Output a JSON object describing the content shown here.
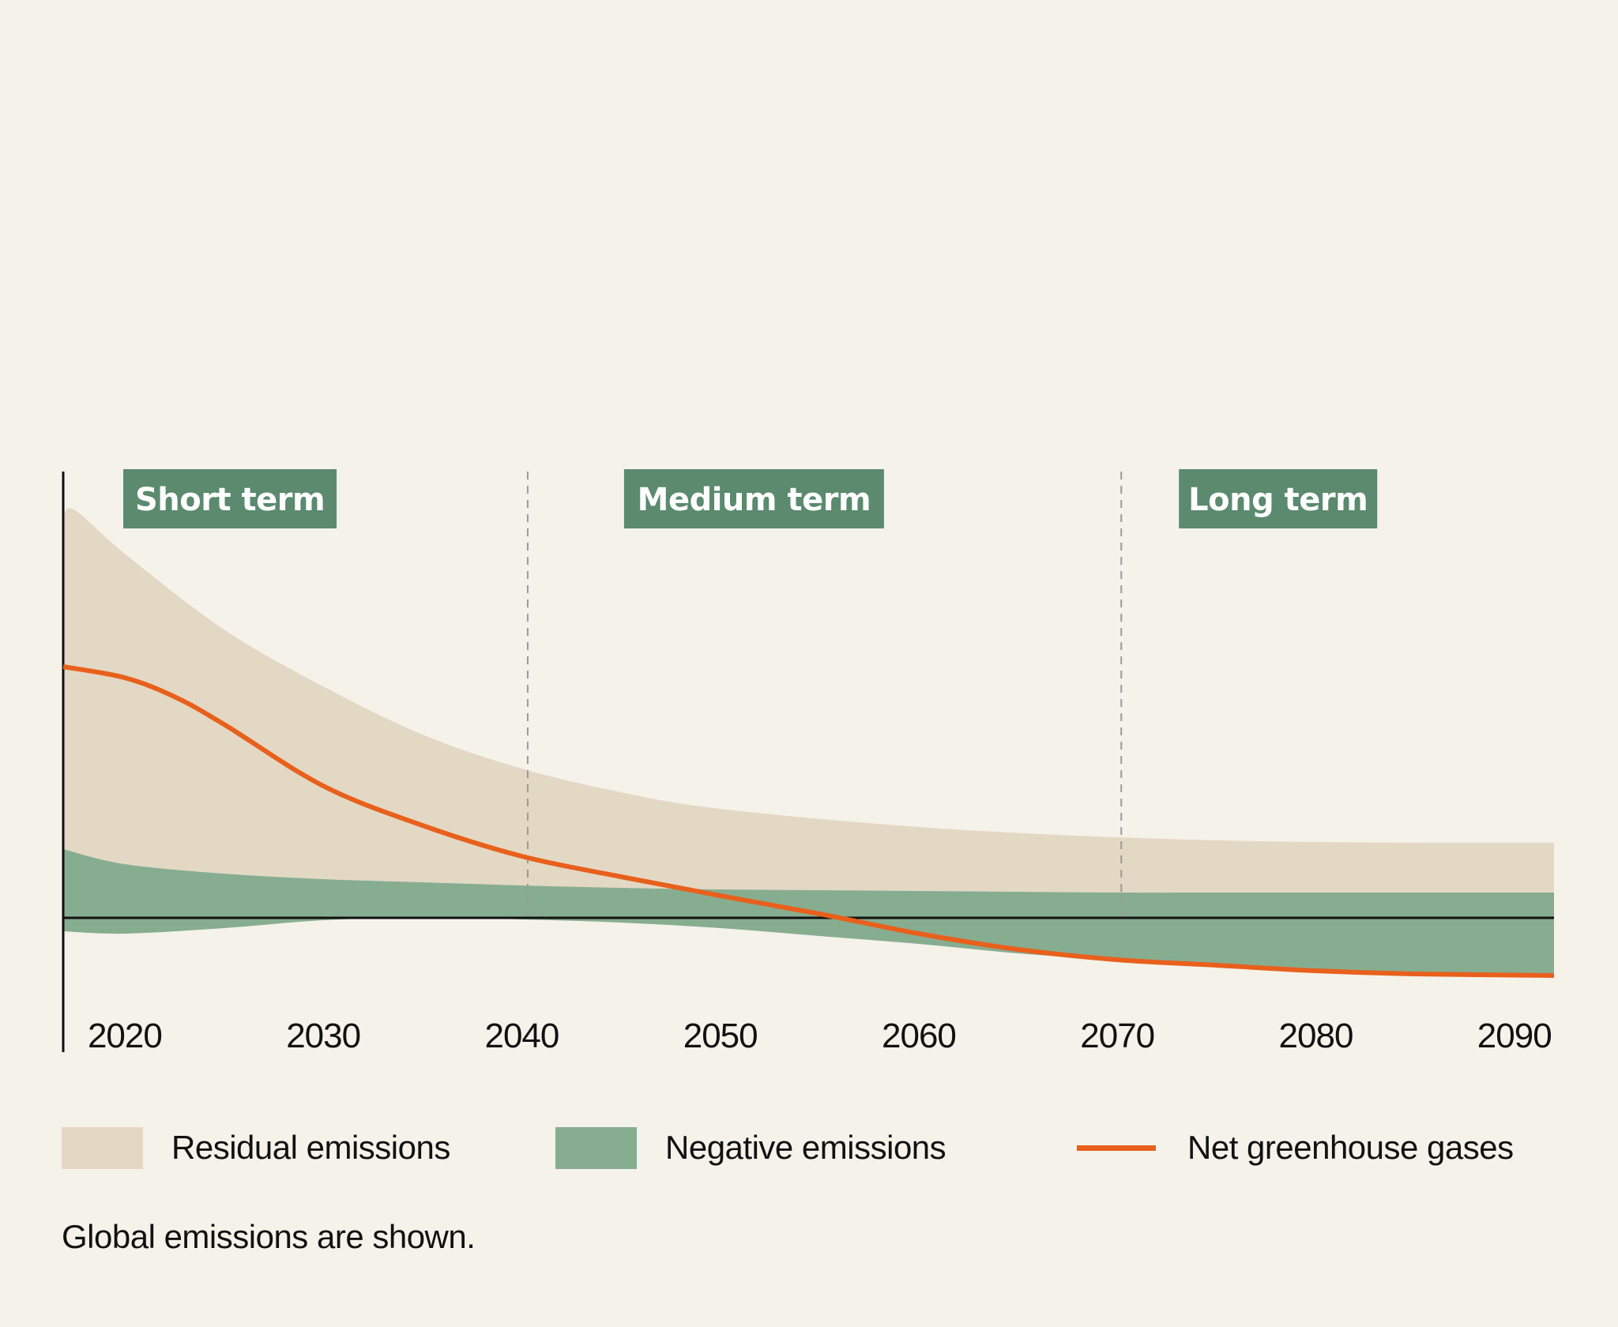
{
  "chart_data": {
    "type": "area",
    "title": "",
    "xlabel": "",
    "ylabel": "",
    "x_ticks": [
      "2020",
      "2030",
      "2040",
      "2050",
      "2060",
      "2070",
      "2080",
      "2090"
    ],
    "xlim": [
      2016.9,
      2092
    ],
    "ylim": [
      -12,
      58
    ],
    "y_units": "relative (unlabeled axis)",
    "grid": false,
    "zero_line": true,
    "periods": [
      {
        "label": "Short term",
        "from": 2016.9,
        "to": 2040.3
      },
      {
        "label": "Medium term",
        "from": 2040.3,
        "to": 2070.2
      },
      {
        "label": "Long term",
        "from": 2070.2,
        "to": 2092
      }
    ],
    "period_dividers": [
      2040.3,
      2070.2
    ],
    "series": [
      {
        "name": "Residual emissions",
        "kind": "area",
        "color": "#e3d8c4",
        "x": [
          2016.9,
          2017.5,
          2020,
          2025,
          2030,
          2035,
          2040,
          2045,
          2050,
          2060,
          2070,
          2080,
          2092
        ],
        "upper": [
          50.9,
          51.6,
          46.1,
          36.5,
          29.3,
          23.2,
          18.9,
          15.9,
          13.8,
          11.5,
          10.2,
          9.6,
          9.5
        ]
      },
      {
        "name": "Negative emissions",
        "kind": "band",
        "color": "#87ad91",
        "x": [
          2016.9,
          2020,
          2025,
          2030,
          2035,
          2040,
          2045,
          2050,
          2055,
          2060,
          2065,
          2070,
          2075,
          2080,
          2085,
          2092
        ],
        "upper": [
          8.7,
          6.8,
          5.6,
          4.9,
          4.5,
          4.1,
          3.8,
          3.6,
          3.5,
          3.4,
          3.3,
          3.2,
          3.2,
          3.2,
          3.2,
          3.2
        ],
        "lower": [
          -1.7,
          -2.0,
          -1.3,
          -0.3,
          0,
          -0.2,
          -0.6,
          -1.3,
          -2.3,
          -3.3,
          -4.5,
          -5.4,
          -6.2,
          -6.7,
          -7.1,
          -7.3
        ]
      },
      {
        "name": "Net greenhouse gases",
        "kind": "line",
        "color": "#e8601c",
        "x": [
          2016.9,
          2020,
          2022.5,
          2025,
          2030,
          2035,
          2040,
          2045,
          2050,
          2055,
          2060,
          2065,
          2070,
          2075,
          2080,
          2085,
          2092
        ],
        "values": [
          31.8,
          30.4,
          28.0,
          24.5,
          16.7,
          11.7,
          7.8,
          5.2,
          2.8,
          0.5,
          -2.0,
          -4.0,
          -5.3,
          -6.0,
          -6.7,
          -7.1,
          -7.3
        ]
      }
    ],
    "legend": {
      "placement": "bottom",
      "entries": [
        {
          "label": "Residual emissions",
          "kind": "swatch",
          "color": "#e3d8c4"
        },
        {
          "label": "Negative emissions",
          "kind": "swatch",
          "color": "#87ad91"
        },
        {
          "label": "Net greenhouse gases",
          "kind": "line",
          "color": "#e8601c"
        }
      ]
    },
    "footnote": "Global emissions are shown."
  },
  "colors": {
    "background": "#f5f2ea",
    "period_label_bg": "#5b8a6f",
    "period_label_text": "#ffffff",
    "axis": "#111111",
    "divider": "#9a9a9a"
  }
}
